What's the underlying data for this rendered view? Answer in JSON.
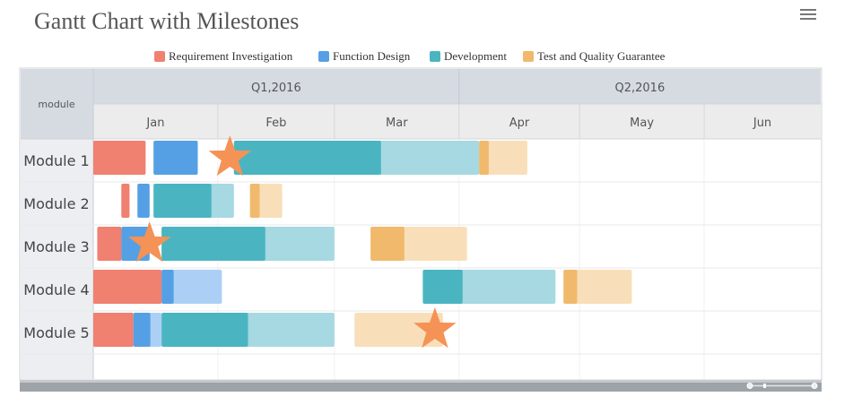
{
  "title": "Gantt Chart with Milestones",
  "colors": {
    "Requirement Investigation": {
      "main": "#f08070",
      "light": "#f08070"
    },
    "Function Design": {
      "main": "#55a0e4",
      "light": "#acd0f5"
    },
    "Development": {
      "main": "#4ab5c1",
      "light": "#a6d9e1"
    },
    "Test and Quality Guarantee": {
      "main": "#f0b96b",
      "light": "#f8dfb9"
    },
    "milestone": "#f59256"
  },
  "legend": [
    {
      "label": "Requirement Investigation",
      "color": "#f08070"
    },
    {
      "label": "Function Design",
      "color": "#55a0e4"
    },
    {
      "label": "Development",
      "color": "#4ab5c1"
    },
    {
      "label": "Test and Quality Guarantee",
      "color": "#f0b96b"
    }
  ],
  "chart_data": {
    "type": "gantt",
    "title": "Gantt Chart with Milestones",
    "category_header": "module",
    "categories": [
      "Module 1",
      "Module 2",
      "Module 3",
      "Module 4",
      "Module 5"
    ],
    "x_range": [
      "2016-01-01",
      "2016-06-30"
    ],
    "quarters": [
      {
        "label": "Q1,2016",
        "start": "2016-01-01",
        "end": "2016-04-01"
      },
      {
        "label": "Q2,2016",
        "start": "2016-04-01",
        "end": "2016-06-30"
      }
    ],
    "months": [
      {
        "label": "Jan",
        "start": "2016-01-01",
        "end": "2016-02-01"
      },
      {
        "label": "Feb",
        "start": "2016-02-01",
        "end": "2016-03-01"
      },
      {
        "label": "Mar",
        "start": "2016-03-01",
        "end": "2016-04-01"
      },
      {
        "label": "Apr",
        "start": "2016-04-01",
        "end": "2016-05-01"
      },
      {
        "label": "May",
        "start": "2016-05-01",
        "end": "2016-06-01"
      },
      {
        "label": "Jun",
        "start": "2016-06-01",
        "end": "2016-06-30"
      }
    ],
    "series": [
      {
        "name": "Requirement Investigation",
        "tasks": [
          {
            "module": "Module 1",
            "start": "2016-01-01",
            "end": "2016-01-14",
            "completed": 1.0
          },
          {
            "module": "Module 2",
            "start": "2016-01-08",
            "end": "2016-01-10",
            "completed": 1.0
          },
          {
            "module": "Module 3",
            "start": "2016-01-02",
            "end": "2016-01-08",
            "completed": 1.0
          },
          {
            "module": "Module 4",
            "start": "2016-01-01",
            "end": "2016-01-18",
            "completed": 1.0
          },
          {
            "module": "Module 5",
            "start": "2016-01-01",
            "end": "2016-01-11",
            "completed": 1.0
          }
        ]
      },
      {
        "name": "Function Design",
        "tasks": [
          {
            "module": "Module 1",
            "start": "2016-01-16",
            "end": "2016-01-27",
            "completed": 1.0
          },
          {
            "module": "Module 2",
            "start": "2016-01-12",
            "end": "2016-01-15",
            "completed": 1.0
          },
          {
            "module": "Module 3",
            "start": "2016-01-08",
            "end": "2016-01-15",
            "completed": 1.0
          },
          {
            "module": "Module 4",
            "start": "2016-01-18",
            "end": "2016-02-02",
            "completed": 0.2
          },
          {
            "module": "Module 5",
            "start": "2016-01-11",
            "end": "2016-01-18",
            "completed": 0.6
          }
        ]
      },
      {
        "name": "Development",
        "tasks": [
          {
            "module": "Module 1",
            "start": "2016-02-05",
            "end": "2016-04-06",
            "completed": 0.6
          },
          {
            "module": "Module 2",
            "start": "2016-01-16",
            "end": "2016-02-05",
            "completed": 0.72
          },
          {
            "module": "Module 3",
            "start": "2016-01-18",
            "end": "2016-03-01",
            "completed": 0.6
          },
          {
            "module": "Module 4",
            "start": "2016-03-23",
            "end": "2016-04-25",
            "completed": 0.3
          },
          {
            "module": "Module 5",
            "start": "2016-01-18",
            "end": "2016-03-01",
            "completed": 0.5
          }
        ]
      },
      {
        "name": "Test and Quality Guarantee",
        "tasks": [
          {
            "module": "Module 1",
            "start": "2016-04-06",
            "end": "2016-04-18",
            "completed": 0.2
          },
          {
            "module": "Module 2",
            "start": "2016-02-09",
            "end": "2016-02-17",
            "completed": 0.3
          },
          {
            "module": "Module 3",
            "start": "2016-03-10",
            "end": "2016-04-03",
            "completed": 0.35
          },
          {
            "module": "Module 4",
            "start": "2016-04-27",
            "end": "2016-05-14",
            "completed": 0.2
          },
          {
            "module": "Module 5",
            "start": "2016-03-06",
            "end": "2016-03-28",
            "completed": 0.0
          }
        ]
      }
    ],
    "milestones": [
      {
        "module": "Module 1",
        "date": "2016-02-04"
      },
      {
        "module": "Module 3",
        "date": "2016-01-15"
      },
      {
        "module": "Module 5",
        "date": "2016-03-26"
      }
    ]
  }
}
